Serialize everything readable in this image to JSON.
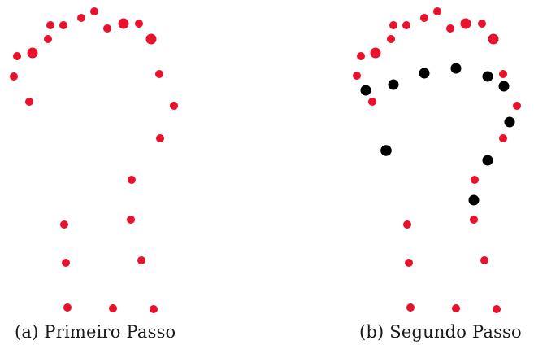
{
  "colors": {
    "red_point": "#e8122d",
    "black_point": "#000000",
    "background": "#ffffff"
  },
  "panels": [
    {
      "id": "a",
      "caption": "(a) Primeiro Passo"
    },
    {
      "id": "b",
      "caption": "(b) Segundo Passo"
    }
  ]
}
